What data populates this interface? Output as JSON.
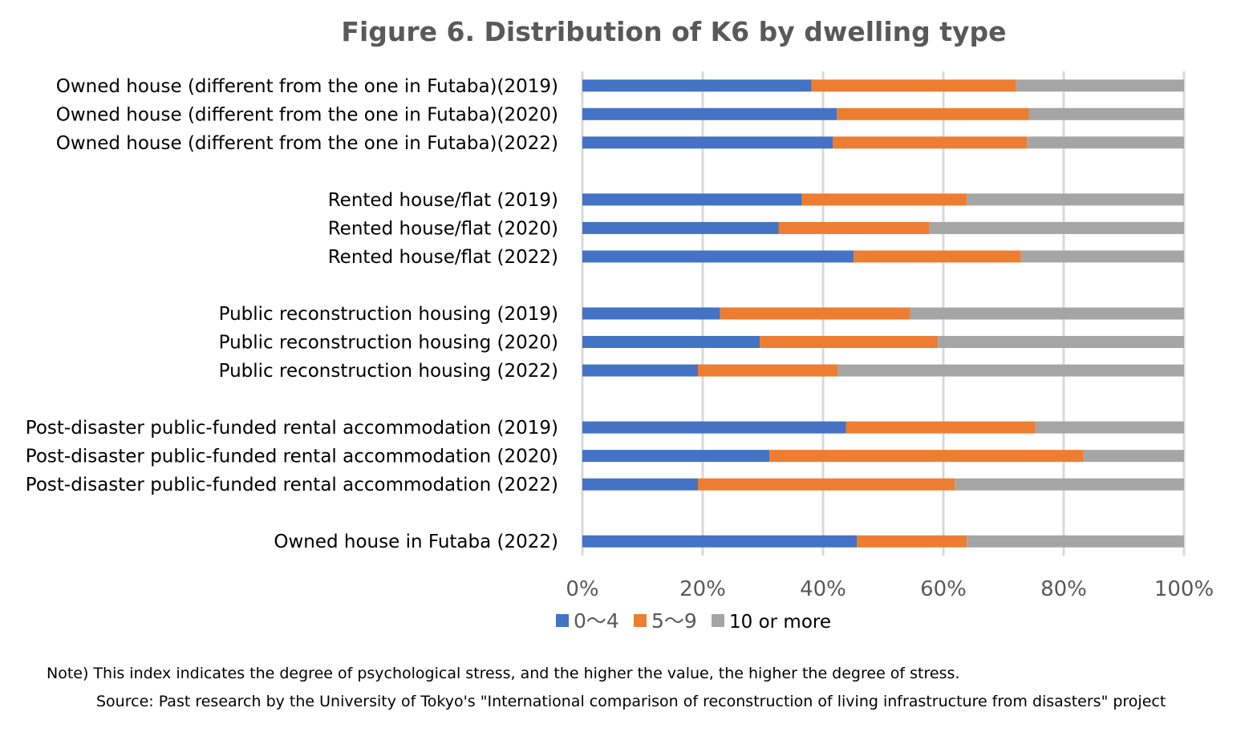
{
  "chart_data": {
    "type": "bar",
    "orientation": "horizontal",
    "stacked": "percent",
    "title": "Figure 6. Distribution of K6 by dwelling type",
    "xlabel": "",
    "ylabel": "",
    "xlim": [
      0,
      100
    ],
    "x_ticks": [
      "0%",
      "20%",
      "40%",
      "60%",
      "80%",
      "100%"
    ],
    "grid": true,
    "legend_position": "bottom",
    "categories": [
      "Owned house (different from the one in Futaba)(2019)",
      "Owned house (different from the one in Futaba)(2020)",
      "Owned house (different from the one in Futaba)(2022)",
      "",
      "Rented house/flat (2019)",
      "Rented house/flat (2020)",
      "Rented house/flat (2022)",
      "",
      "Public reconstruction housing (2019)",
      "Public reconstruction housing (2020)",
      "Public reconstruction housing (2022)",
      "",
      "Post-disaster public-funded rental accommodation (2019)",
      "Post-disaster public-funded rental accommodation (2020)",
      "Post-disaster public-funded rental accommodation (2022)",
      "",
      "Owned house in Futaba (2022)"
    ],
    "series": [
      {
        "name": "0～4",
        "color": "#4472C4",
        "values": [
          38.1,
          42.3,
          41.6,
          null,
          36.5,
          32.6,
          45.1,
          null,
          22.9,
          29.5,
          19.2,
          null,
          43.8,
          31.1,
          19.2,
          null,
          45.6
        ]
      },
      {
        "name": "5～9",
        "color": "#ED7D31",
        "values": [
          34.0,
          31.9,
          32.3,
          null,
          27.4,
          25.1,
          27.8,
          null,
          31.6,
          29.6,
          23.3,
          null,
          31.5,
          52.2,
          42.7,
          null,
          18.3
        ]
      },
      {
        "name": "10 or more",
        "color": "#A5A5A5",
        "values": [
          27.9,
          25.8,
          26.1,
          null,
          36.1,
          42.3,
          27.1,
          null,
          45.5,
          40.9,
          57.5,
          null,
          24.7,
          16.7,
          38.1,
          null,
          36.1
        ]
      }
    ]
  },
  "notes": {
    "note": "Note) This index indicates the degree of psychological stress, and the higher the value, the higher the degree of stress.",
    "source": "Source: Past research by the University of Tokyo's \"International comparison of reconstruction of living infrastructure from disasters\" project"
  }
}
